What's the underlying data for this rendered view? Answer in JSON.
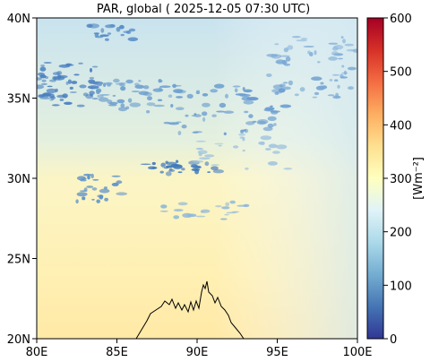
{
  "title": "PAR, global ( 2025-12-05 07:30 UTC)",
  "map": {
    "lat_range": [
      20,
      40
    ],
    "lon_range": [
      80,
      100
    ],
    "lat_ticks": [
      "20N",
      "25N",
      "30N",
      "35N",
      "40N"
    ],
    "lon_ticks": [
      "80E",
      "85E",
      "90E",
      "95E",
      "100E"
    ],
    "colormap": "RdYlBu_r",
    "field_colors": {
      "clear_north": "#cfe6f0",
      "clear_south": "#fff2b8",
      "cloud": "#4d86c2",
      "coast": "#000000"
    }
  },
  "colorbar": {
    "label": "[Wm⁻²]",
    "min": 0,
    "max": 600,
    "ticks": [
      "0",
      "100",
      "200",
      "300",
      "400",
      "500",
      "600"
    ]
  }
}
